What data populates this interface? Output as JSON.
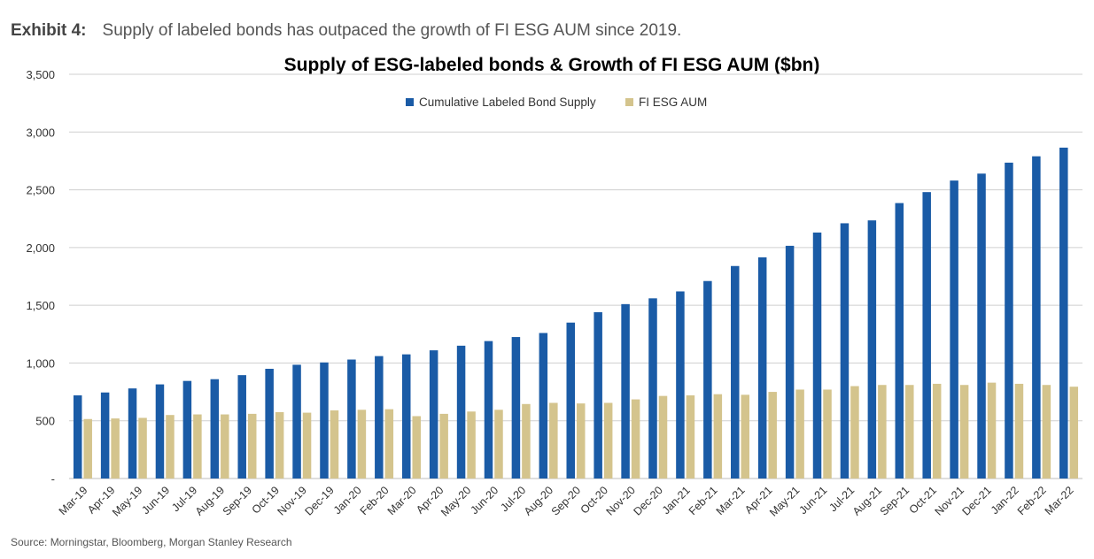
{
  "exhibit": {
    "label": "Exhibit 4:",
    "text": "Supply of labeled bonds has outpaced the growth of FI ESG AUM since 2019."
  },
  "source": "Source: Morningstar, Bloomberg, Morgan Stanley Research",
  "colors": {
    "bond_supply": "#1a5ba6",
    "esg_aum": "#d4c48d",
    "grid": "#cfcfcf"
  },
  "chart_data": {
    "type": "bar",
    "title": "Supply of ESG-labeled bonds & Growth of FI ESG AUM ($bn)",
    "xlabel": "",
    "ylabel": "",
    "ylim": [
      0,
      3500
    ],
    "yticks": [
      "-",
      "500",
      "1,000",
      "1,500",
      "2,000",
      "2,500",
      "3,000",
      "3,500"
    ],
    "grid": true,
    "legend": "top-center",
    "categories": [
      "Mar-19",
      "Apr-19",
      "May-19",
      "Jun-19",
      "Jul-19",
      "Aug-19",
      "Sep-19",
      "Oct-19",
      "Nov-19",
      "Dec-19",
      "Jan-20",
      "Feb-20",
      "Mar-20",
      "Apr-20",
      "May-20",
      "Jun-20",
      "Jul-20",
      "Aug-20",
      "Sep-20",
      "Oct-20",
      "Nov-20",
      "Dec-20",
      "Jan-21",
      "Feb-21",
      "Mar-21",
      "Apr-21",
      "May-21",
      "Jun-21",
      "Jul-21",
      "Aug-21",
      "Sep-21",
      "Oct-21",
      "Nov-21",
      "Dec-21",
      "Jan-22",
      "Feb-22",
      "Mar-22"
    ],
    "series": [
      {
        "name": "Cumulative Labeled Bond Supply",
        "values": [
          720,
          745,
          780,
          815,
          845,
          860,
          895,
          950,
          985,
          1005,
          1030,
          1060,
          1075,
          1110,
          1150,
          1190,
          1225,
          1260,
          1350,
          1440,
          1510,
          1560,
          1620,
          1710,
          1840,
          1915,
          2015,
          2130,
          2210,
          2235,
          2385,
          2480,
          2580,
          2640,
          2735,
          2790,
          2865
        ]
      },
      {
        "name": "FI ESG AUM",
        "values": [
          515,
          520,
          525,
          550,
          555,
          555,
          560,
          575,
          570,
          590,
          595,
          600,
          540,
          560,
          580,
          595,
          645,
          655,
          650,
          655,
          685,
          715,
          720,
          730,
          725,
          750,
          770,
          770,
          800,
          810,
          810,
          820,
          810,
          830,
          820,
          810,
          795
        ]
      }
    ]
  }
}
